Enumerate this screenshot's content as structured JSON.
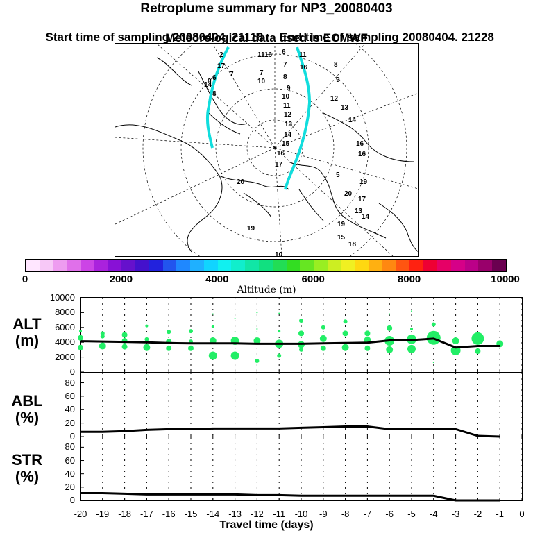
{
  "header": {
    "title": "Retroplume summary for NP3_20080403",
    "start": "Start time of sampling 20080404. 21118",
    "end": "End time of sampling 20080404. 21228",
    "met": "Meteorological data used is ECMWF"
  },
  "map": {
    "day_labels_left": [
      "2",
      "17",
      "7",
      "6",
      "9",
      "14",
      "11",
      "16",
      "7",
      "8",
      "10"
    ],
    "day_labels_center": [
      "6",
      "7",
      "8",
      "9",
      "10",
      "11",
      "12",
      "13",
      "14",
      "15",
      "16",
      "17"
    ],
    "day_labels_right": [
      "11",
      "16",
      "8",
      "9",
      "12",
      "13",
      "14",
      "16",
      "16",
      "5",
      "19",
      "20",
      "17",
      "13",
      "14",
      "15",
      "18",
      "19"
    ],
    "misc_labels": [
      "20",
      "10",
      "19"
    ]
  },
  "colorbar": {
    "title": "Altitude (m)",
    "ticks": [
      "0",
      "2000",
      "4000",
      "6000",
      "8000",
      "10000"
    ],
    "colors": [
      "#ffe6ff",
      "#f7c8f7",
      "#ee9cf0",
      "#e070ea",
      "#cc44e6",
      "#aa22dd",
      "#8811d6",
      "#6611cc",
      "#4411cc",
      "#2222dd",
      "#2255ee",
      "#1f88ff",
      "#1fb0ff",
      "#11d4ff",
      "#11f0f0",
      "#11eecc",
      "#11e6a6",
      "#11e080",
      "#22dd55",
      "#33dd22",
      "#66e622",
      "#99ee22",
      "#ccee22",
      "#f0f022",
      "#ffd811",
      "#ffb011",
      "#ff8811",
      "#ff5511",
      "#ff2211",
      "#ee0033",
      "#e60066",
      "#d60088",
      "#bb0088",
      "#99006b",
      "#6a0050"
    ]
  },
  "panels": {
    "alt": {
      "label": [
        "ALT",
        "(m)"
      ],
      "yticks": [
        "10000",
        "8000",
        "6000",
        "4000",
        "2000",
        "0"
      ]
    },
    "abl": {
      "label": [
        "ABL",
        "(%)"
      ],
      "yticks": [
        "80",
        "60",
        "40",
        "20",
        "0"
      ]
    },
    "str": {
      "label": [
        "STR",
        "(%)"
      ],
      "yticks": [
        "80",
        "60",
        "40",
        "20",
        "0"
      ]
    }
  },
  "xaxis": {
    "ticks": [
      "-20",
      "-19",
      "-18",
      "-17",
      "-16",
      "-15",
      "-14",
      "-13",
      "-12",
      "-11",
      "-10",
      "-9",
      "-8",
      "-7",
      "-6",
      "-5",
      "-4",
      "-3",
      "-2",
      "-1",
      "0"
    ],
    "title": "Travel time (days)"
  },
  "chart_data": {
    "type": "line",
    "x_days": [
      -20,
      -19,
      -18,
      -17,
      -16,
      -15,
      -14,
      -13,
      -12,
      -11,
      -10,
      -9,
      -8,
      -7,
      -6,
      -5,
      -4,
      -3,
      -2,
      -1
    ],
    "xlim": [
      -20,
      0
    ],
    "series": [
      {
        "name": "ALT mean altitude (m)",
        "ylim": [
          0,
          10000
        ],
        "values": [
          4150,
          4100,
          4050,
          4000,
          3900,
          3850,
          3850,
          3850,
          3800,
          3800,
          3800,
          3850,
          3900,
          3950,
          4250,
          4300,
          4500,
          3300,
          3500,
          3500
        ]
      },
      {
        "name": "ABL (%)",
        "ylim": [
          0,
          95
        ],
        "values": [
          7,
          7,
          8,
          10,
          11,
          11,
          12,
          12,
          12,
          12,
          13,
          14,
          15,
          15,
          11,
          11,
          11,
          11,
          1,
          0
        ]
      },
      {
        "name": "STR (%)",
        "ylim": [
          0,
          95
        ],
        "values": [
          11,
          11,
          10,
          9,
          9,
          9,
          9,
          9,
          8,
          8,
          7,
          7,
          7,
          7,
          7,
          7,
          7,
          0,
          0,
          0
        ]
      }
    ],
    "alt_spread": [
      [
        [
          5500,
          2
        ],
        [
          4600,
          4
        ],
        [
          3300,
          4
        ]
      ],
      [
        [
          5200,
          3
        ],
        [
          4800,
          3
        ],
        [
          3500,
          5
        ]
      ],
      [
        [
          5000,
          4
        ],
        [
          4200,
          4
        ],
        [
          3400,
          4
        ]
      ],
      [
        [
          6200,
          2
        ],
        [
          4400,
          3
        ],
        [
          3300,
          5
        ]
      ],
      [
        [
          5400,
          3
        ],
        [
          4100,
          4
        ],
        [
          3200,
          4
        ]
      ],
      [
        [
          5500,
          3
        ],
        [
          4100,
          3
        ],
        [
          3200,
          4
        ]
      ],
      [
        [
          7800,
          1
        ],
        [
          6100,
          2
        ],
        [
          4200,
          5
        ],
        [
          2200,
          6
        ]
      ],
      [
        [
          7200,
          1
        ],
        [
          5400,
          1
        ],
        [
          4200,
          6
        ],
        [
          2200,
          6
        ]
      ],
      [
        [
          8000,
          1
        ],
        [
          5800,
          1
        ],
        [
          4200,
          5
        ],
        [
          1500,
          3
        ]
      ],
      [
        [
          7900,
          1
        ],
        [
          5500,
          2
        ],
        [
          3800,
          6
        ],
        [
          2200,
          3
        ]
      ],
      [
        [
          6900,
          3
        ],
        [
          5200,
          4
        ],
        [
          3700,
          5
        ],
        [
          3000,
          3
        ]
      ],
      [
        [
          6000,
          3
        ],
        [
          4500,
          5
        ],
        [
          3200,
          4
        ]
      ],
      [
        [
          6800,
          3
        ],
        [
          5200,
          4
        ],
        [
          3300,
          5
        ]
      ],
      [
        [
          5200,
          4
        ],
        [
          4300,
          5
        ],
        [
          3200,
          4
        ]
      ],
      [
        [
          7800,
          1
        ],
        [
          5900,
          4
        ],
        [
          4200,
          7
        ],
        [
          3000,
          5
        ]
      ],
      [
        [
          8200,
          1
        ],
        [
          5800,
          2
        ],
        [
          4400,
          7
        ],
        [
          3100,
          6
        ]
      ],
      [
        [
          6400,
          3
        ],
        [
          4600,
          10
        ],
        [
          1300,
          1
        ]
      ],
      [
        [
          4200,
          5
        ],
        [
          2900,
          7
        ]
      ],
      [
        [
          4500,
          9
        ],
        [
          2800,
          4
        ]
      ],
      [
        [
          3800,
          5
        ]
      ]
    ]
  }
}
